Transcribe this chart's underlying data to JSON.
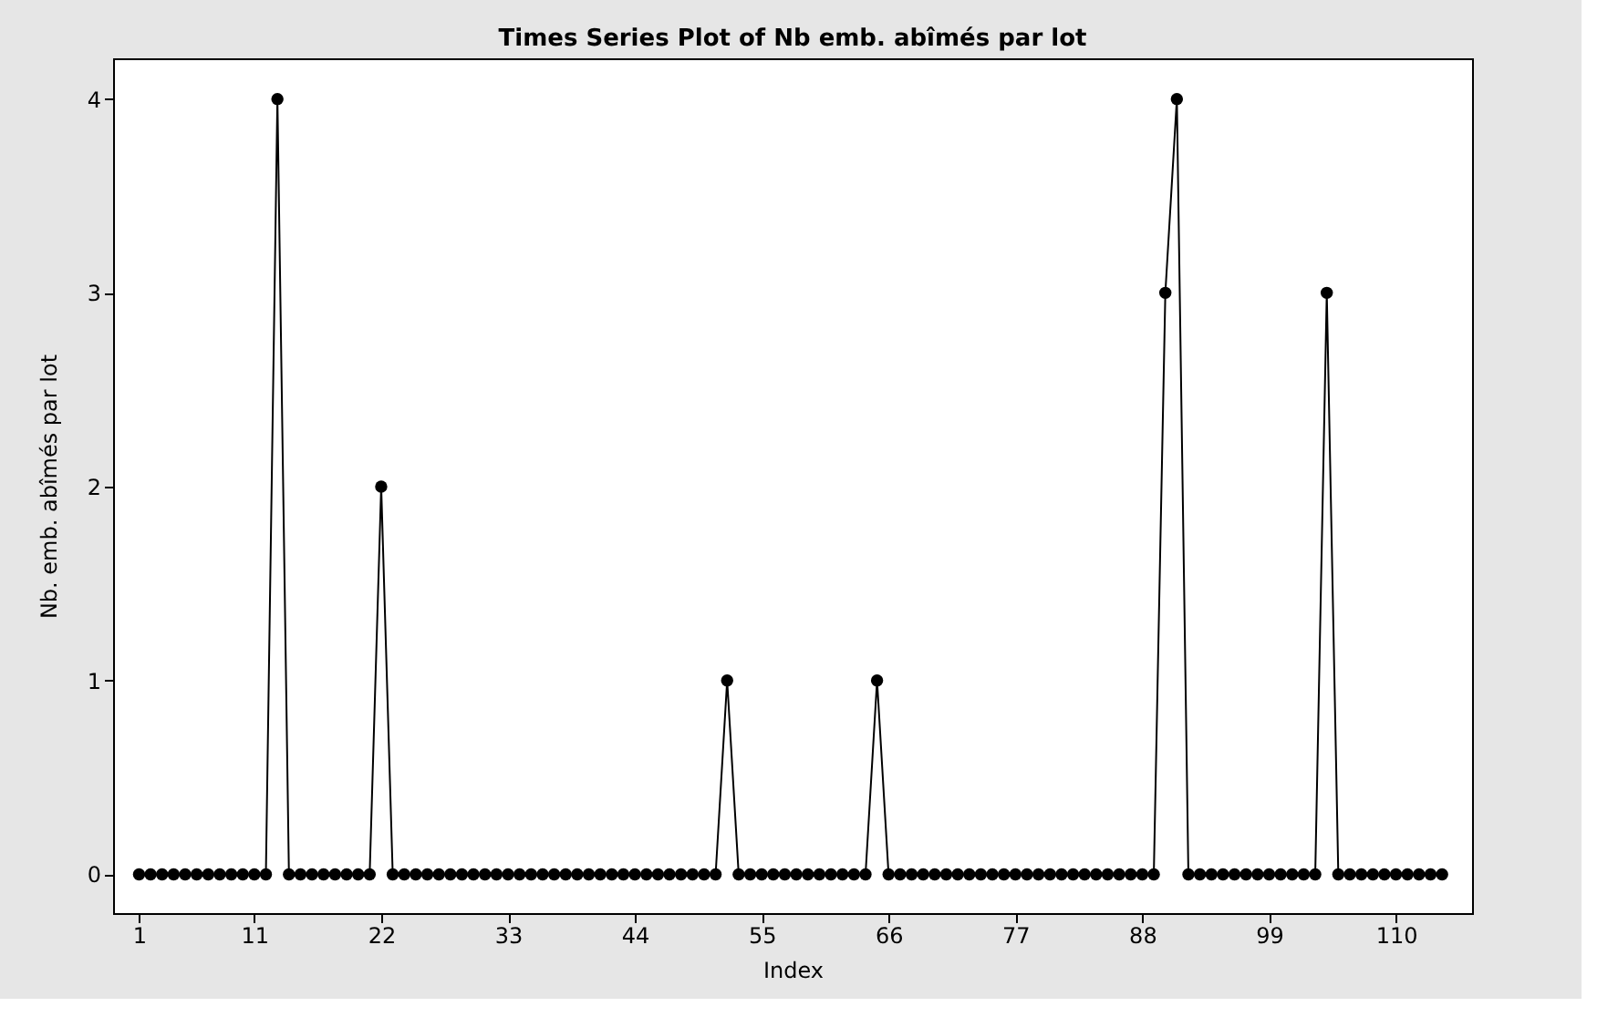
{
  "chart_data": {
    "type": "line",
    "title": "Times Series Plot of Nb emb. abîmés par lot",
    "xlabel": "Index",
    "ylabel": "Nb. emb. abîmés par lot",
    "x": [
      1,
      2,
      3,
      4,
      5,
      6,
      7,
      8,
      9,
      10,
      11,
      12,
      13,
      14,
      15,
      16,
      17,
      18,
      19,
      20,
      21,
      22,
      23,
      24,
      25,
      26,
      27,
      28,
      29,
      30,
      31,
      32,
      33,
      34,
      35,
      36,
      37,
      38,
      39,
      40,
      41,
      42,
      43,
      44,
      45,
      46,
      47,
      48,
      49,
      50,
      51,
      52,
      53,
      54,
      55,
      56,
      57,
      58,
      59,
      60,
      61,
      62,
      63,
      64,
      65,
      66,
      67,
      68,
      69,
      70,
      71,
      72,
      73,
      74,
      75,
      76,
      77,
      78,
      79,
      80,
      81,
      82,
      83,
      84,
      85,
      86,
      87,
      88,
      89,
      90,
      91,
      92,
      93,
      94,
      95,
      96,
      97,
      98,
      99,
      100,
      101,
      102,
      103,
      104,
      105,
      106,
      107,
      108,
      109,
      110,
      111,
      112,
      113,
      114
    ],
    "series": [
      {
        "color": "#000000",
        "values": [
          0,
          0,
          0,
          0,
          0,
          0,
          0,
          0,
          0,
          0,
          0,
          0,
          4,
          0,
          0,
          0,
          0,
          0,
          0,
          0,
          0,
          2,
          0,
          0,
          0,
          0,
          0,
          0,
          0,
          0,
          0,
          0,
          0,
          0,
          0,
          0,
          0,
          0,
          0,
          0,
          0,
          0,
          0,
          0,
          0,
          0,
          0,
          0,
          0,
          0,
          0,
          1,
          0,
          0,
          0,
          0,
          0,
          0,
          0,
          0,
          0,
          0,
          0,
          0,
          1,
          0,
          0,
          0,
          0,
          0,
          0,
          0,
          0,
          0,
          0,
          0,
          0,
          0,
          0,
          0,
          0,
          0,
          0,
          0,
          0,
          0,
          0,
          0,
          0,
          3,
          4,
          0,
          0,
          0,
          0,
          0,
          0,
          0,
          0,
          0,
          0,
          0,
          0,
          3,
          0,
          0,
          0,
          0,
          0,
          0,
          0,
          0,
          0,
          0
        ]
      }
    ],
    "xlim": [
      -1.25,
      116.6
    ],
    "xticks": [
      1,
      11,
      22,
      33,
      44,
      55,
      66,
      77,
      88,
      99,
      110
    ],
    "ylim": [
      -0.2,
      4.21
    ],
    "yticks": [
      0,
      1,
      2,
      3,
      4
    ],
    "marker": "circle",
    "line_style": "solid",
    "grid": false,
    "legend": false
  }
}
